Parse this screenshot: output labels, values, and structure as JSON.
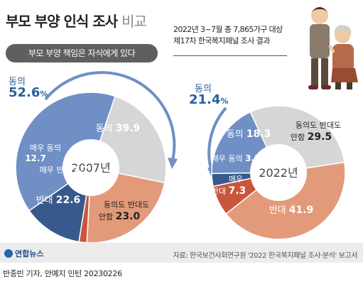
{
  "header": {
    "title": "부모 부양 인식 조사",
    "title_suffix": "비교",
    "banner": "부모 부양 책임은 자식에게 있다",
    "note_line1": "2022년 3~7월 총 7,865가구 대상",
    "note_line2": "제17차 한국복지패널 조사 결과"
  },
  "left_agree": {
    "word": "동의",
    "value": "52.6",
    "unit": "%"
  },
  "right_agree": {
    "word": "동의",
    "value": "21.4",
    "unit": "%"
  },
  "footer": {
    "logo": "연합뉴스",
    "source": "자료: 한국보건사회연구원 '2022 한국복지패널 조사·분석' 보고서",
    "credit": "반종빈 기자, 안예지 인턴  20230226"
  },
  "colors": {
    "agree": "#6f8fc5",
    "strong_agree": "#38598c",
    "neutral": "#d6d6d6",
    "disagree": "#e39a7a",
    "strong_disagree": "#c8563c",
    "agree_text": "#2b5f9e"
  },
  "chart_data": [
    {
      "type": "pie",
      "center_label": "2007년",
      "slices": [
        {
          "name": "동의",
          "value": 39.9,
          "color": "#6f8fc5",
          "label_color": "#ffffff"
        },
        {
          "name": "동의도 반대도 안함",
          "value": 23.0,
          "color": "#d6d6d6",
          "label_color": "#222222"
        },
        {
          "name": "반대",
          "value": 22.6,
          "color": "#e39a7a",
          "label_color": "#ffffff"
        },
        {
          "name": "매우 반대",
          "value": 1.7,
          "color": "#c8563c",
          "label_color": "#ffffff"
        },
        {
          "name": "매우 동의",
          "value": 12.7,
          "color": "#38598c",
          "label_color": "#ffffff"
        }
      ]
    },
    {
      "type": "pie",
      "center_label": "2022년",
      "slices": [
        {
          "name": "동의도 반대도 안함",
          "value": 29.5,
          "color": "#d6d6d6",
          "label_color": "#222222"
        },
        {
          "name": "반대",
          "value": 41.9,
          "color": "#e39a7a",
          "label_color": "#ffffff"
        },
        {
          "name": "매우 반대",
          "value": 7.3,
          "color": "#c8563c",
          "label_color": "#ffffff"
        },
        {
          "name": "매우 동의",
          "value": 3.1,
          "color": "#38598c",
          "label_color": "#ffffff"
        },
        {
          "name": "동의",
          "value": 18.3,
          "color": "#6f8fc5",
          "label_color": "#ffffff"
        }
      ]
    }
  ]
}
